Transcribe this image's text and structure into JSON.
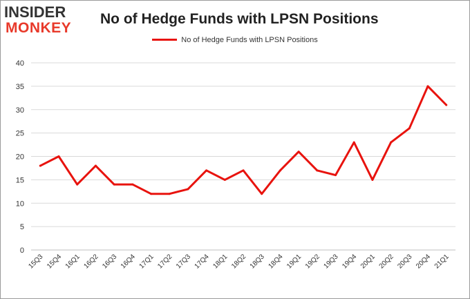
{
  "logo": {
    "top": "INSIDER",
    "bottom": "MONKEY"
  },
  "colors": {
    "series": "#e8130e",
    "grid": "#d9d9d9",
    "logo_accent": "#e8392a"
  },
  "chart_data": {
    "type": "line",
    "title": "No of Hedge Funds with LPSN Positions",
    "xlabel": "",
    "ylabel": "",
    "legend": "top-center",
    "grid": true,
    "ylim": [
      0,
      40
    ],
    "yticks": [
      0,
      5,
      10,
      15,
      20,
      25,
      30,
      35,
      40
    ],
    "categories": [
      "15Q3",
      "15Q4",
      "16Q1",
      "16Q2",
      "16Q3",
      "16Q4",
      "17Q1",
      "17Q2",
      "17Q3",
      "17Q4",
      "18Q1",
      "18Q2",
      "18Q3",
      "18Q4",
      "19Q1",
      "19Q2",
      "19Q3",
      "19Q4",
      "20Q1",
      "20Q2",
      "20Q3",
      "20Q4",
      "21Q1"
    ],
    "series": [
      {
        "name": "No of Hedge Funds with LPSN Positions",
        "values": [
          18,
          20,
          14,
          18,
          14,
          14,
          12,
          12,
          13,
          17,
          15,
          17,
          12,
          17,
          21,
          17,
          16,
          23,
          15,
          23,
          26,
          35,
          31
        ]
      }
    ]
  }
}
